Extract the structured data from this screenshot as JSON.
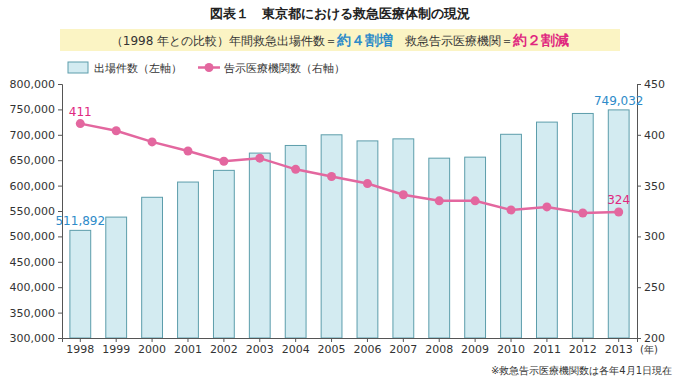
{
  "chart_data": {
    "type": "bar",
    "title": "図表１　東京都における救急医療体制の現況",
    "subtitle": "（1998 年との比較）",
    "annotations": [
      {
        "text": "年間救急出場件数＝"
      },
      {
        "text": "約４割増",
        "color": "#2e8bc9"
      },
      {
        "text": "　救急告示医療機関＝"
      },
      {
        "text": "約２割減",
        "color": "#e0287f"
      }
    ],
    "caption": "※救急告示医療機関数は各年4月1日現在",
    "xlabel": "(年)",
    "categories": [
      "1998",
      "1999",
      "2000",
      "2001",
      "2002",
      "2003",
      "2004",
      "2005",
      "2006",
      "2007",
      "2008",
      "2009",
      "2010",
      "2011",
      "2012",
      "2013"
    ],
    "series": [
      {
        "name": "出場件数（左軸）",
        "type": "bar",
        "color": "#d3ebf1",
        "values": [
          511892,
          538000,
          577000,
          607000,
          630000,
          664000,
          679000,
          700000,
          688000,
          692000,
          654000,
          656000,
          701000,
          725000,
          742000,
          749032
        ],
        "value_labels": [
          "511,892",
          null,
          null,
          null,
          null,
          null,
          null,
          null,
          null,
          null,
          null,
          null,
          null,
          null,
          null,
          "749,032"
        ]
      },
      {
        "name": "告示医療機関数（右軸）",
        "type": "line",
        "axis": "y2",
        "color": "#e3679f",
        "marker": "circle",
        "values": [
          411,
          404,
          393,
          384,
          374,
          377,
          366,
          359,
          352,
          341,
          335,
          335,
          326,
          329,
          323,
          324
        ],
        "value_labels": [
          "411",
          null,
          null,
          null,
          null,
          null,
          null,
          null,
          null,
          null,
          null,
          null,
          null,
          null,
          null,
          "324"
        ]
      }
    ],
    "ylim": [
      300000,
      800000
    ],
    "yticks": [
      {
        "value": 300000,
        "label": "300,000"
      },
      {
        "value": 350000,
        "label": "350,000"
      },
      {
        "value": 400000,
        "label": "400,000"
      },
      {
        "value": 450000,
        "label": "450,000"
      },
      {
        "value": 500000,
        "label": "500,000"
      },
      {
        "value": 550000,
        "label": "550,000"
      },
      {
        "value": 600000,
        "label": "600,000"
      },
      {
        "value": 650000,
        "label": "650,000"
      },
      {
        "value": 700000,
        "label": "700,000"
      },
      {
        "value": 750000,
        "label": "750,000"
      },
      {
        "value": 800000,
        "label": "800,000"
      }
    ],
    "y2lim": [
      200,
      450
    ],
    "y2ticks": [
      200,
      250,
      300,
      350,
      400,
      450
    ],
    "legend": "upper left",
    "grid": false,
    "data_labels": true
  }
}
